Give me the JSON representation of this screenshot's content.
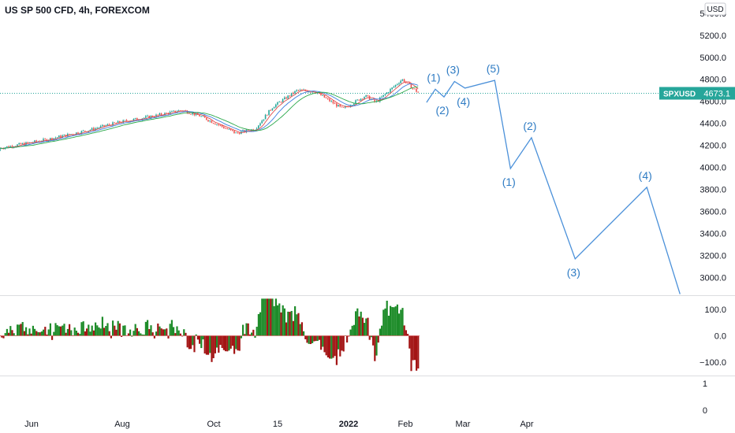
{
  "header": {
    "title": "US SP 500 CFD, 4h, FOREXCOM"
  },
  "currency_badge": "USD",
  "price_tag": {
    "symbol": "SPXUSD",
    "value": "4673.1",
    "color": "#26a69a"
  },
  "colors": {
    "wave_line": "#4a90d9",
    "wave_label": "#2f7cc4",
    "bull": "#26a69a",
    "bear": "#ef5350",
    "osc_up": "#1e8c2a",
    "osc_down": "#a31515",
    "ma1": "#e04b4b",
    "ma2": "#3b7ddd",
    "ma3": "#2aa84a"
  },
  "chart_data": {
    "type": "line",
    "title": "US SP 500 CFD, 4h, FOREXCOM",
    "currency": "USD",
    "last_price": 4673.1,
    "price_axis": {
      "ticks": [
        "5400.0",
        "5200.0",
        "5000.0",
        "4800.0",
        "4600.0",
        "4400.0",
        "4200.0",
        "4000.0",
        "3800.0",
        "3600.0",
        "3400.0",
        "3200.0",
        "3000.0"
      ],
      "range": [
        2840,
        5520
      ]
    },
    "time_axis": {
      "ticks": [
        "Jun",
        "Aug",
        "Oct",
        "15",
        "2022",
        "Feb",
        "Mar",
        "Apr"
      ]
    },
    "history_anchors": [
      {
        "date": "2021-05-10",
        "price": 4150
      },
      {
        "date": "2021-05-24",
        "price": 4190
      },
      {
        "date": "2021-06-14",
        "price": 4250
      },
      {
        "date": "2021-07-09",
        "price": 4340
      },
      {
        "date": "2021-07-26",
        "price": 4410
      },
      {
        "date": "2021-08-16",
        "price": 4470
      },
      {
        "date": "2021-08-31",
        "price": 4520
      },
      {
        "date": "2021-09-10",
        "price": 4470
      },
      {
        "date": "2021-10-01",
        "price": 4310
      },
      {
        "date": "2021-10-12",
        "price": 4350
      },
      {
        "date": "2021-10-22",
        "price": 4550
      },
      {
        "date": "2021-11-05",
        "price": 4700
      },
      {
        "date": "2021-11-15",
        "price": 4690
      },
      {
        "date": "2021-12-01",
        "price": 4530
      },
      {
        "date": "2021-12-14",
        "price": 4650
      },
      {
        "date": "2021-12-20",
        "price": 4590
      },
      {
        "date": "2022-01-04",
        "price": 4800
      },
      {
        "date": "2022-01-10",
        "price": 4720
      },
      {
        "date": "2022-01-14",
        "price": 4670
      }
    ],
    "wave_projection": [
      {
        "label": "",
        "date": "2022-01-18",
        "price": 4590
      },
      {
        "label": "(1)",
        "date": "2022-01-23",
        "price": 4710
      },
      {
        "label": "(2)",
        "date": "2022-01-28",
        "price": 4640
      },
      {
        "label": "(3)",
        "date": "2022-02-03",
        "price": 4780
      },
      {
        "label": "(4)",
        "date": "2022-02-09",
        "price": 4720
      },
      {
        "label": "(5)",
        "date": "2022-02-26",
        "price": 4790
      },
      {
        "label": "(1)",
        "date": "2022-03-07",
        "price": 3990
      },
      {
        "label": "(2)",
        "date": "2022-03-19",
        "price": 4270
      },
      {
        "label": "(3)",
        "date": "2022-04-13",
        "price": 3170
      },
      {
        "label": "(4)",
        "date": "2022-05-24",
        "price": 3820
      },
      {
        "label": "",
        "date": "2022-06-12",
        "price": 2850
      }
    ],
    "oscillator": {
      "ticks": [
        "100.0",
        "0.0",
        "−100.0"
      ],
      "range": [
        -150,
        150
      ]
    },
    "lower_pane": {
      "ticks": [
        "1",
        "0"
      ]
    }
  }
}
